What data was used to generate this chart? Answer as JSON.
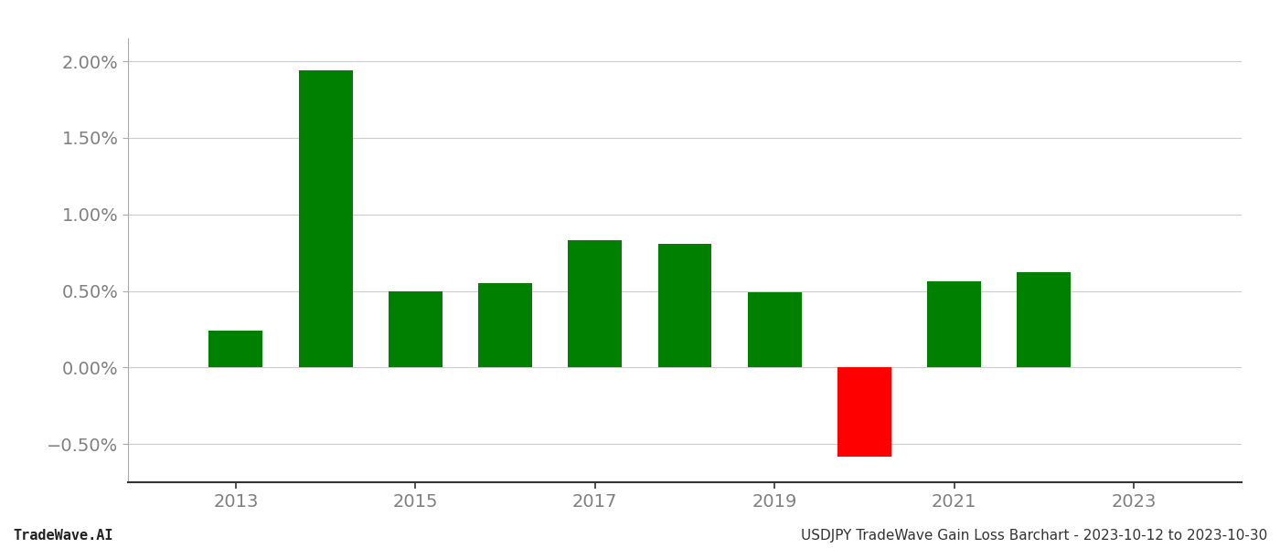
{
  "years": [
    2013,
    2014,
    2015,
    2016,
    2017,
    2018,
    2019,
    2020,
    2021,
    2022
  ],
  "values": [
    0.0024,
    0.0194,
    0.005,
    0.0055,
    0.0083,
    0.0081,
    0.0049,
    -0.0058,
    0.0056,
    0.0062
  ],
  "colors": [
    "#008000",
    "#008000",
    "#008000",
    "#008000",
    "#008000",
    "#008000",
    "#008000",
    "#ff0000",
    "#008000",
    "#008000"
  ],
  "bar_width": 0.6,
  "ylim": [
    -0.0075,
    0.0215
  ],
  "yticks": [
    -0.005,
    0.0,
    0.005,
    0.01,
    0.015,
    0.02
  ],
  "xticks": [
    2013,
    2015,
    2017,
    2019,
    2021,
    2023
  ],
  "xlim": [
    2011.8,
    2024.2
  ],
  "background_color": "#ffffff",
  "grid_color": "#cccccc",
  "footer_left": "TradeWave.AI",
  "footer_right": "USDJPY TradeWave Gain Loss Barchart - 2023-10-12 to 2023-10-30",
  "tick_color": "#808080",
  "footer_fontsize": 11,
  "ytick_labels": [
    "−0.50%",
    "0.00%",
    "0.50%",
    "1.00%",
    "1.50%",
    "2.00%"
  ]
}
